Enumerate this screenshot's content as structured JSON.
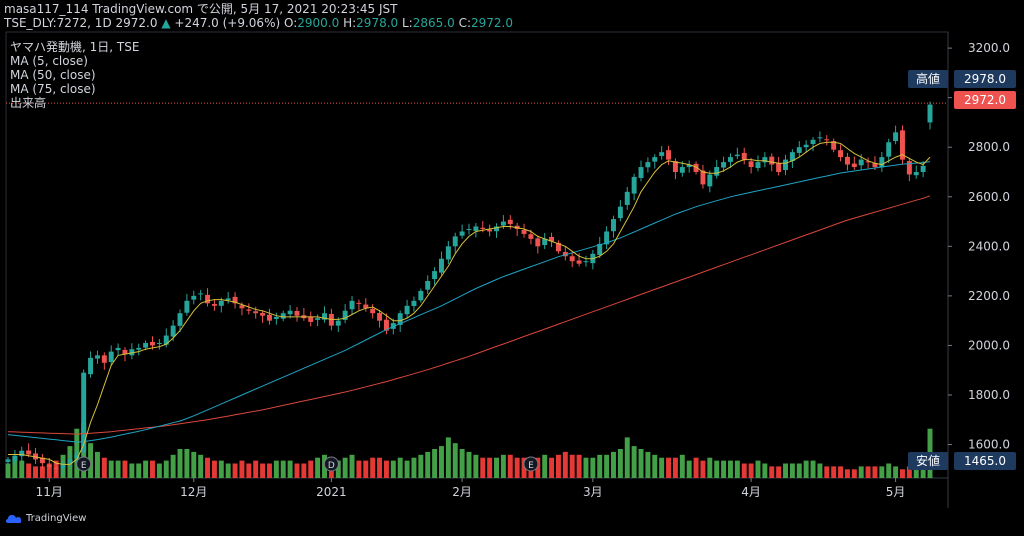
{
  "header": {
    "line1": "masa117_114 TradingView.com で公開, 5月 17, 2021 20:23:45 JST",
    "symbol": "TSE_DLY:7272, 1D 2972.0",
    "change_arrow": "▲",
    "change": "+247.0 (+9.06%)",
    "o_label": "O:",
    "o": "2900.0",
    "h_label": "H:",
    "h": "2978.0",
    "l_label": "L:",
    "l": "2865.0",
    "c_label": "C:",
    "c": "2972.0"
  },
  "legend": {
    "title": "ヤマハ発動機, 1日, TSE",
    "ma5": "MA (5, close)",
    "ma50": "MA (50, close)",
    "ma75": "MA (75, close)",
    "volume": "出来高"
  },
  "markers": {
    "high_label": "高値",
    "high_value": "2978.0",
    "last_value": "2972.0",
    "low_label": "安値",
    "low_value": "1465.0"
  },
  "events": [
    "E",
    "D",
    "E"
  ],
  "brand": "TradingView",
  "colors": {
    "up": "#26a69a",
    "down": "#ef5350",
    "vol_up": "#43a047",
    "vol_down": "#e53935",
    "ma5": "#d4c03a",
    "ma50": "#1fa4c4",
    "ma75": "#d9473c",
    "label_box": "#1e3a5f"
  },
  "chart_data": {
    "type": "candlestick",
    "title": "ヤマハ発動機, 1日, TSE",
    "ylim": [
      1465,
      3265
    ],
    "y_ticks": [
      1600,
      1800,
      2000,
      2200,
      2400,
      2600,
      2800,
      3000,
      3200
    ],
    "y_tick_labels": [
      "1600.0",
      "1800.0",
      "2000.0",
      "2200.0",
      "2400.0",
      "2600.0",
      "2800.0",
      "3000.0",
      "3200.0"
    ],
    "x_tick_labels": [
      {
        "label": "11月",
        "index": 6
      },
      {
        "label": "12月",
        "index": 27
      },
      {
        "label": "2021",
        "index": 47
      },
      {
        "label": "2月",
        "index": 66
      },
      {
        "label": "3月",
        "index": 85
      },
      {
        "label": "4月",
        "index": 108
      },
      {
        "label": "5月",
        "index": 129
      }
    ],
    "close": [
      1540,
      1555,
      1575,
      1560,
      1540,
      1525,
      1510,
      1505,
      1520,
      1540,
      1560,
      1890,
      1950,
      1960,
      1930,
      1975,
      1990,
      1965,
      1985,
      1990,
      2010,
      2000,
      2010,
      2040,
      2080,
      2130,
      2180,
      2200,
      2210,
      2170,
      2160,
      2180,
      2190,
      2170,
      2150,
      2140,
      2130,
      2120,
      2100,
      2115,
      2130,
      2140,
      2120,
      2110,
      2095,
      2110,
      2130,
      2080,
      2100,
      2140,
      2180,
      2170,
      2150,
      2130,
      2100,
      2060,
      2090,
      2130,
      2160,
      2180,
      2220,
      2260,
      2300,
      2350,
      2400,
      2440,
      2460,
      2470,
      2480,
      2470,
      2460,
      2480,
      2500,
      2490,
      2470,
      2450,
      2430,
      2400,
      2430,
      2420,
      2380,
      2360,
      2340,
      2330,
      2340,
      2370,
      2410,
      2460,
      2510,
      2560,
      2620,
      2680,
      2720,
      2740,
      2760,
      2780,
      2750,
      2700,
      2720,
      2730,
      2700,
      2650,
      2690,
      2720,
      2740,
      2760,
      2770,
      2750,
      2720,
      2740,
      2760,
      2730,
      2700,
      2750,
      2780,
      2800,
      2810,
      2830,
      2840,
      2830,
      2790,
      2760,
      2730,
      2720,
      2750,
      2740,
      2720,
      2760,
      2820,
      2860,
      2750,
      2690,
      2700,
      2725,
      2972
    ],
    "volume": [
      0.25,
      0.35,
      0.3,
      0.25,
      0.2,
      0.2,
      0.25,
      0.3,
      0.4,
      0.55,
      0.85,
      0.95,
      0.6,
      0.45,
      0.35,
      0.3,
      0.3,
      0.3,
      0.25,
      0.25,
      0.3,
      0.3,
      0.25,
      0.3,
      0.4,
      0.5,
      0.5,
      0.45,
      0.4,
      0.35,
      0.3,
      0.3,
      0.25,
      0.25,
      0.3,
      0.25,
      0.3,
      0.25,
      0.25,
      0.3,
      0.3,
      0.3,
      0.25,
      0.25,
      0.3,
      0.35,
      0.4,
      0.35,
      0.3,
      0.35,
      0.4,
      0.3,
      0.3,
      0.35,
      0.35,
      0.3,
      0.3,
      0.35,
      0.3,
      0.35,
      0.4,
      0.45,
      0.5,
      0.55,
      0.7,
      0.6,
      0.5,
      0.45,
      0.4,
      0.35,
      0.35,
      0.35,
      0.4,
      0.4,
      0.35,
      0.35,
      0.35,
      0.35,
      0.4,
      0.35,
      0.4,
      0.45,
      0.4,
      0.4,
      0.35,
      0.35,
      0.4,
      0.4,
      0.45,
      0.5,
      0.7,
      0.55,
      0.5,
      0.45,
      0.4,
      0.35,
      0.35,
      0.35,
      0.4,
      0.3,
      0.35,
      0.3,
      0.35,
      0.3,
      0.3,
      0.3,
      0.3,
      0.25,
      0.25,
      0.3,
      0.25,
      0.2,
      0.2,
      0.25,
      0.25,
      0.25,
      0.3,
      0.3,
      0.25,
      0.2,
      0.2,
      0.2,
      0.15,
      0.15,
      0.2,
      0.2,
      0.2,
      0.2,
      0.25,
      0.2,
      0.15,
      0.2,
      0.2,
      0.25,
      0.85
    ],
    "ma5": [
      1560,
      1560,
      1560,
      1555,
      1550,
      1545,
      1540,
      1525,
      1520,
      1520,
      1540,
      1600,
      1690,
      1760,
      1840,
      1920,
      1960,
      1965,
      1970,
      1975,
      1985,
      1990,
      1995,
      2005,
      2030,
      2060,
      2100,
      2140,
      2170,
      2180,
      2185,
      2185,
      2180,
      2175,
      2165,
      2155,
      2145,
      2140,
      2130,
      2120,
      2115,
      2115,
      2115,
      2115,
      2115,
      2115,
      2110,
      2105,
      2105,
      2110,
      2125,
      2140,
      2150,
      2155,
      2140,
      2120,
      2100,
      2100,
      2110,
      2130,
      2160,
      2200,
      2240,
      2280,
      2320,
      2370,
      2410,
      2440,
      2460,
      2465,
      2470,
      2475,
      2480,
      2480,
      2475,
      2470,
      2460,
      2440,
      2430,
      2420,
      2410,
      2400,
      2380,
      2360,
      2350,
      2350,
      2360,
      2380,
      2410,
      2460,
      2510,
      2560,
      2620,
      2660,
      2700,
      2730,
      2745,
      2740,
      2735,
      2730,
      2720,
      2700,
      2695,
      2695,
      2705,
      2720,
      2740,
      2750,
      2750,
      2745,
      2745,
      2740,
      2735,
      2735,
      2745,
      2760,
      2780,
      2800,
      2815,
      2820,
      2820,
      2815,
      2795,
      2775,
      2760,
      2745,
      2735,
      2730,
      2745,
      2760,
      2770,
      2755,
      2740,
      2730,
      2760
    ],
    "ma50": [
      1640,
      1637,
      1634,
      1631,
      1628,
      1625,
      1622,
      1619,
      1616,
      1613,
      1610,
      1612,
      1616,
      1620,
      1625,
      1630,
      1636,
      1642,
      1648,
      1654,
      1660,
      1667,
      1674,
      1681,
      1688,
      1695,
      1705,
      1716,
      1728,
      1740,
      1752,
      1764,
      1776,
      1788,
      1800,
      1812,
      1824,
      1836,
      1848,
      1860,
      1872,
      1884,
      1896,
      1908,
      1920,
      1932,
      1944,
      1956,
      1968,
      1980,
      1994,
      2008,
      2022,
      2036,
      2050,
      2064,
      2076,
      2088,
      2100,
      2112,
      2124,
      2136,
      2148,
      2160,
      2174,
      2188,
      2202,
      2216,
      2230,
      2242,
      2254,
      2266,
      2278,
      2288,
      2298,
      2308,
      2318,
      2328,
      2338,
      2348,
      2358,
      2366,
      2374,
      2382,
      2390,
      2398,
      2406,
      2414,
      2424,
      2434,
      2446,
      2458,
      2470,
      2482,
      2494,
      2506,
      2518,
      2530,
      2540,
      2550,
      2560,
      2568,
      2576,
      2584,
      2592,
      2600,
      2606,
      2612,
      2618,
      2624,
      2630,
      2636,
      2642,
      2648,
      2654,
      2660,
      2666,
      2672,
      2678,
      2684,
      2690,
      2696,
      2700,
      2704,
      2708,
      2712,
      2716,
      2720,
      2724,
      2728,
      2732,
      2734,
      2736,
      2738,
      2742
    ],
    "ma75": [
      1652,
      1651,
      1650,
      1649,
      1648,
      1647,
      1646,
      1645,
      1644,
      1643,
      1642,
      1644,
      1646,
      1648,
      1650,
      1652,
      1655,
      1658,
      1661,
      1664,
      1667,
      1670,
      1673,
      1676,
      1680,
      1684,
      1688,
      1692,
      1696,
      1700,
      1705,
      1710,
      1715,
      1720,
      1725,
      1730,
      1735,
      1740,
      1746,
      1752,
      1758,
      1764,
      1770,
      1776,
      1782,
      1788,
      1794,
      1800,
      1806,
      1812,
      1819,
      1826,
      1833,
      1840,
      1847,
      1854,
      1862,
      1870,
      1878,
      1886,
      1894,
      1902,
      1911,
      1920,
      1929,
      1938,
      1947,
      1956,
      1966,
      1976,
      1986,
      1996,
      2006,
      2016,
      2026,
      2036,
      2046,
      2056,
      2066,
      2076,
      2086,
      2096,
      2106,
      2116,
      2126,
      2136,
      2146,
      2156,
      2166,
      2176,
      2186,
      2196,
      2206,
      2216,
      2226,
      2236,
      2246,
      2256,
      2266,
      2276,
      2286,
      2296,
      2306,
      2316,
      2326,
      2336,
      2346,
      2356,
      2366,
      2376,
      2386,
      2396,
      2406,
      2416,
      2426,
      2436,
      2446,
      2456,
      2466,
      2476,
      2486,
      2496,
      2506,
      2514,
      2522,
      2530,
      2538,
      2546,
      2554,
      2562,
      2570,
      2578,
      2586,
      2594,
      2604
    ]
  }
}
